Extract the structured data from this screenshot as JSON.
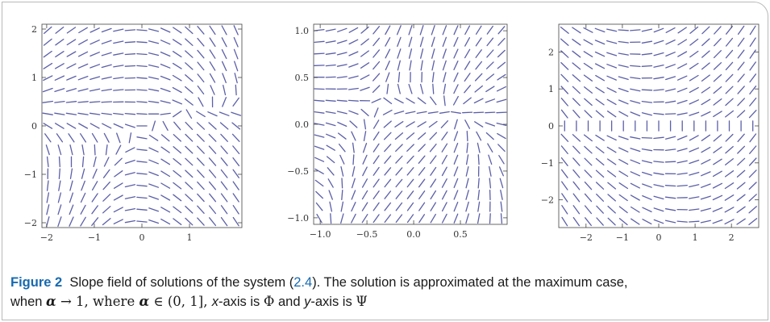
{
  "figure": {
    "caption": {
      "label": "Figure 2",
      "text_1": "Slope field of solutions of the system (",
      "eq_ref": "2.4",
      "text_2": "). The solution is approximated at the maximum case,",
      "text_3": "when ",
      "alpha": "α",
      "arrow": " → 1, where ",
      "interval": " ∈ (0, 1], ",
      "x_axis": "x",
      "axis_is_1": "-axis is ",
      "phi": "Φ",
      "and": " and ",
      "y_axis": "y",
      "axis_is_2": "-axis is ",
      "psi": "Ψ"
    },
    "colors": {
      "segment": "#5b5fa8",
      "axis": "#444444",
      "tick_text": "#333333",
      "caption_label": "#1769b0"
    }
  },
  "chart_data": [
    {
      "type": "slope-field",
      "title": "",
      "xlabel": "",
      "ylabel": "",
      "xlim": [
        -2.1,
        2.1
      ],
      "ylim": [
        -2.1,
        2.1
      ],
      "x_ticks": [
        -2,
        -1,
        0,
        1
      ],
      "x_tick_labels": [
        "−2",
        "−1",
        "0",
        "1"
      ],
      "y_ticks": [
        2,
        1,
        0,
        -1,
        -2
      ],
      "y_tick_labels": [
        "2",
        "1",
        "0",
        "−1",
        "−2"
      ],
      "grid": 17,
      "variant": "a"
    },
    {
      "type": "slope-field",
      "title": "",
      "xlabel": "",
      "ylabel": "",
      "xlim": [
        -1.07,
        1.0
      ],
      "ylim": [
        -1.07,
        1.07
      ],
      "x_ticks": [
        -1.0,
        -0.5,
        0.0,
        0.5
      ],
      "x_tick_labels": [
        "−1.0",
        "−0.5",
        "0.0",
        "0.5"
      ],
      "y_ticks": [
        1.0,
        0.5,
        0.0,
        -0.5,
        -1.0
      ],
      "y_tick_labels": [
        "1.0",
        "0.5",
        "0.0",
        "−0.5",
        "−1.0"
      ],
      "grid": 17,
      "variant": "b"
    },
    {
      "type": "slope-field",
      "title": "",
      "xlabel": "",
      "ylabel": "",
      "xlim": [
        -2.75,
        2.75
      ],
      "ylim": [
        -2.75,
        2.75
      ],
      "x_ticks": [
        -2,
        -1,
        0,
        1,
        2
      ],
      "x_tick_labels": [
        "−2",
        "−1",
        "0",
        "1",
        "2"
      ],
      "y_ticks": [
        2,
        1,
        0,
        -1,
        -2
      ],
      "y_tick_labels": [
        "2",
        "1",
        "0",
        "−1",
        "−2"
      ],
      "grid": 17,
      "variant": "c"
    }
  ]
}
